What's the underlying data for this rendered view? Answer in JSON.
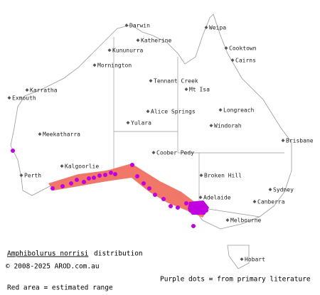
{
  "towns": [
    "Darwin",
    "Weipa",
    "Katherine",
    "Kununurra",
    "Cooktown",
    "Cairns",
    "Mornington",
    "Tennant Creek",
    "Mt Isa",
    "Karratha",
    "Exmouth",
    "Longreach",
    "Alice Springs",
    "Yulara",
    "Windorah",
    "Meekatharra",
    "Brisbane",
    "Coober Pedy",
    "Kalgoorlie",
    "Broken Hill",
    "Perth",
    "Sydney",
    "Adelaide",
    "Canberra",
    "Melbourne",
    "Hobart"
  ],
  "caption": {
    "species": "Amphibolurus norrisi",
    "distribution": "distribution",
    "copyright": "© 2008-2025 AROD.com.au",
    "purple_legend": "Purple dots = from primary literature",
    "red_legend": "Red area = estimated range"
  }
}
